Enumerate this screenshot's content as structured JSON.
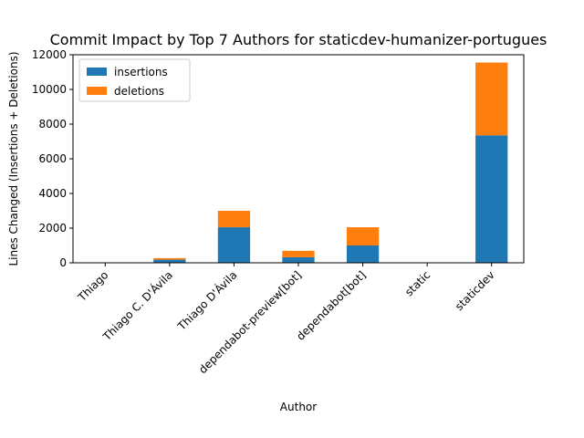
{
  "chart_data": {
    "type": "bar",
    "stacked": true,
    "title": "Commit Impact by Top 7 Authors for staticdev-humanizer-portugues",
    "xlabel": "Author",
    "ylabel": "Lines Changed (Insertions + Deletions)",
    "ylim": [
      0,
      12000
    ],
    "yticks": [
      "0",
      "2000",
      "4000",
      "6000",
      "8000",
      "10000",
      "12000"
    ],
    "grid": false,
    "legend_position": "top-left",
    "categories": [
      "Thiago",
      "Thiago C. D'Ávila",
      "Thiago D'Ávila",
      "dependabot-preview[bot]",
      "dependabot[bot]",
      "static",
      "staticdev"
    ],
    "series": [
      {
        "name": "insertions",
        "color": "#1f77b4",
        "values": [
          5,
          180,
          2050,
          320,
          1000,
          5,
          7350
        ]
      },
      {
        "name": "deletions",
        "color": "#ff7f0e",
        "values": [
          3,
          90,
          950,
          370,
          1050,
          3,
          4200
        ]
      }
    ]
  }
}
